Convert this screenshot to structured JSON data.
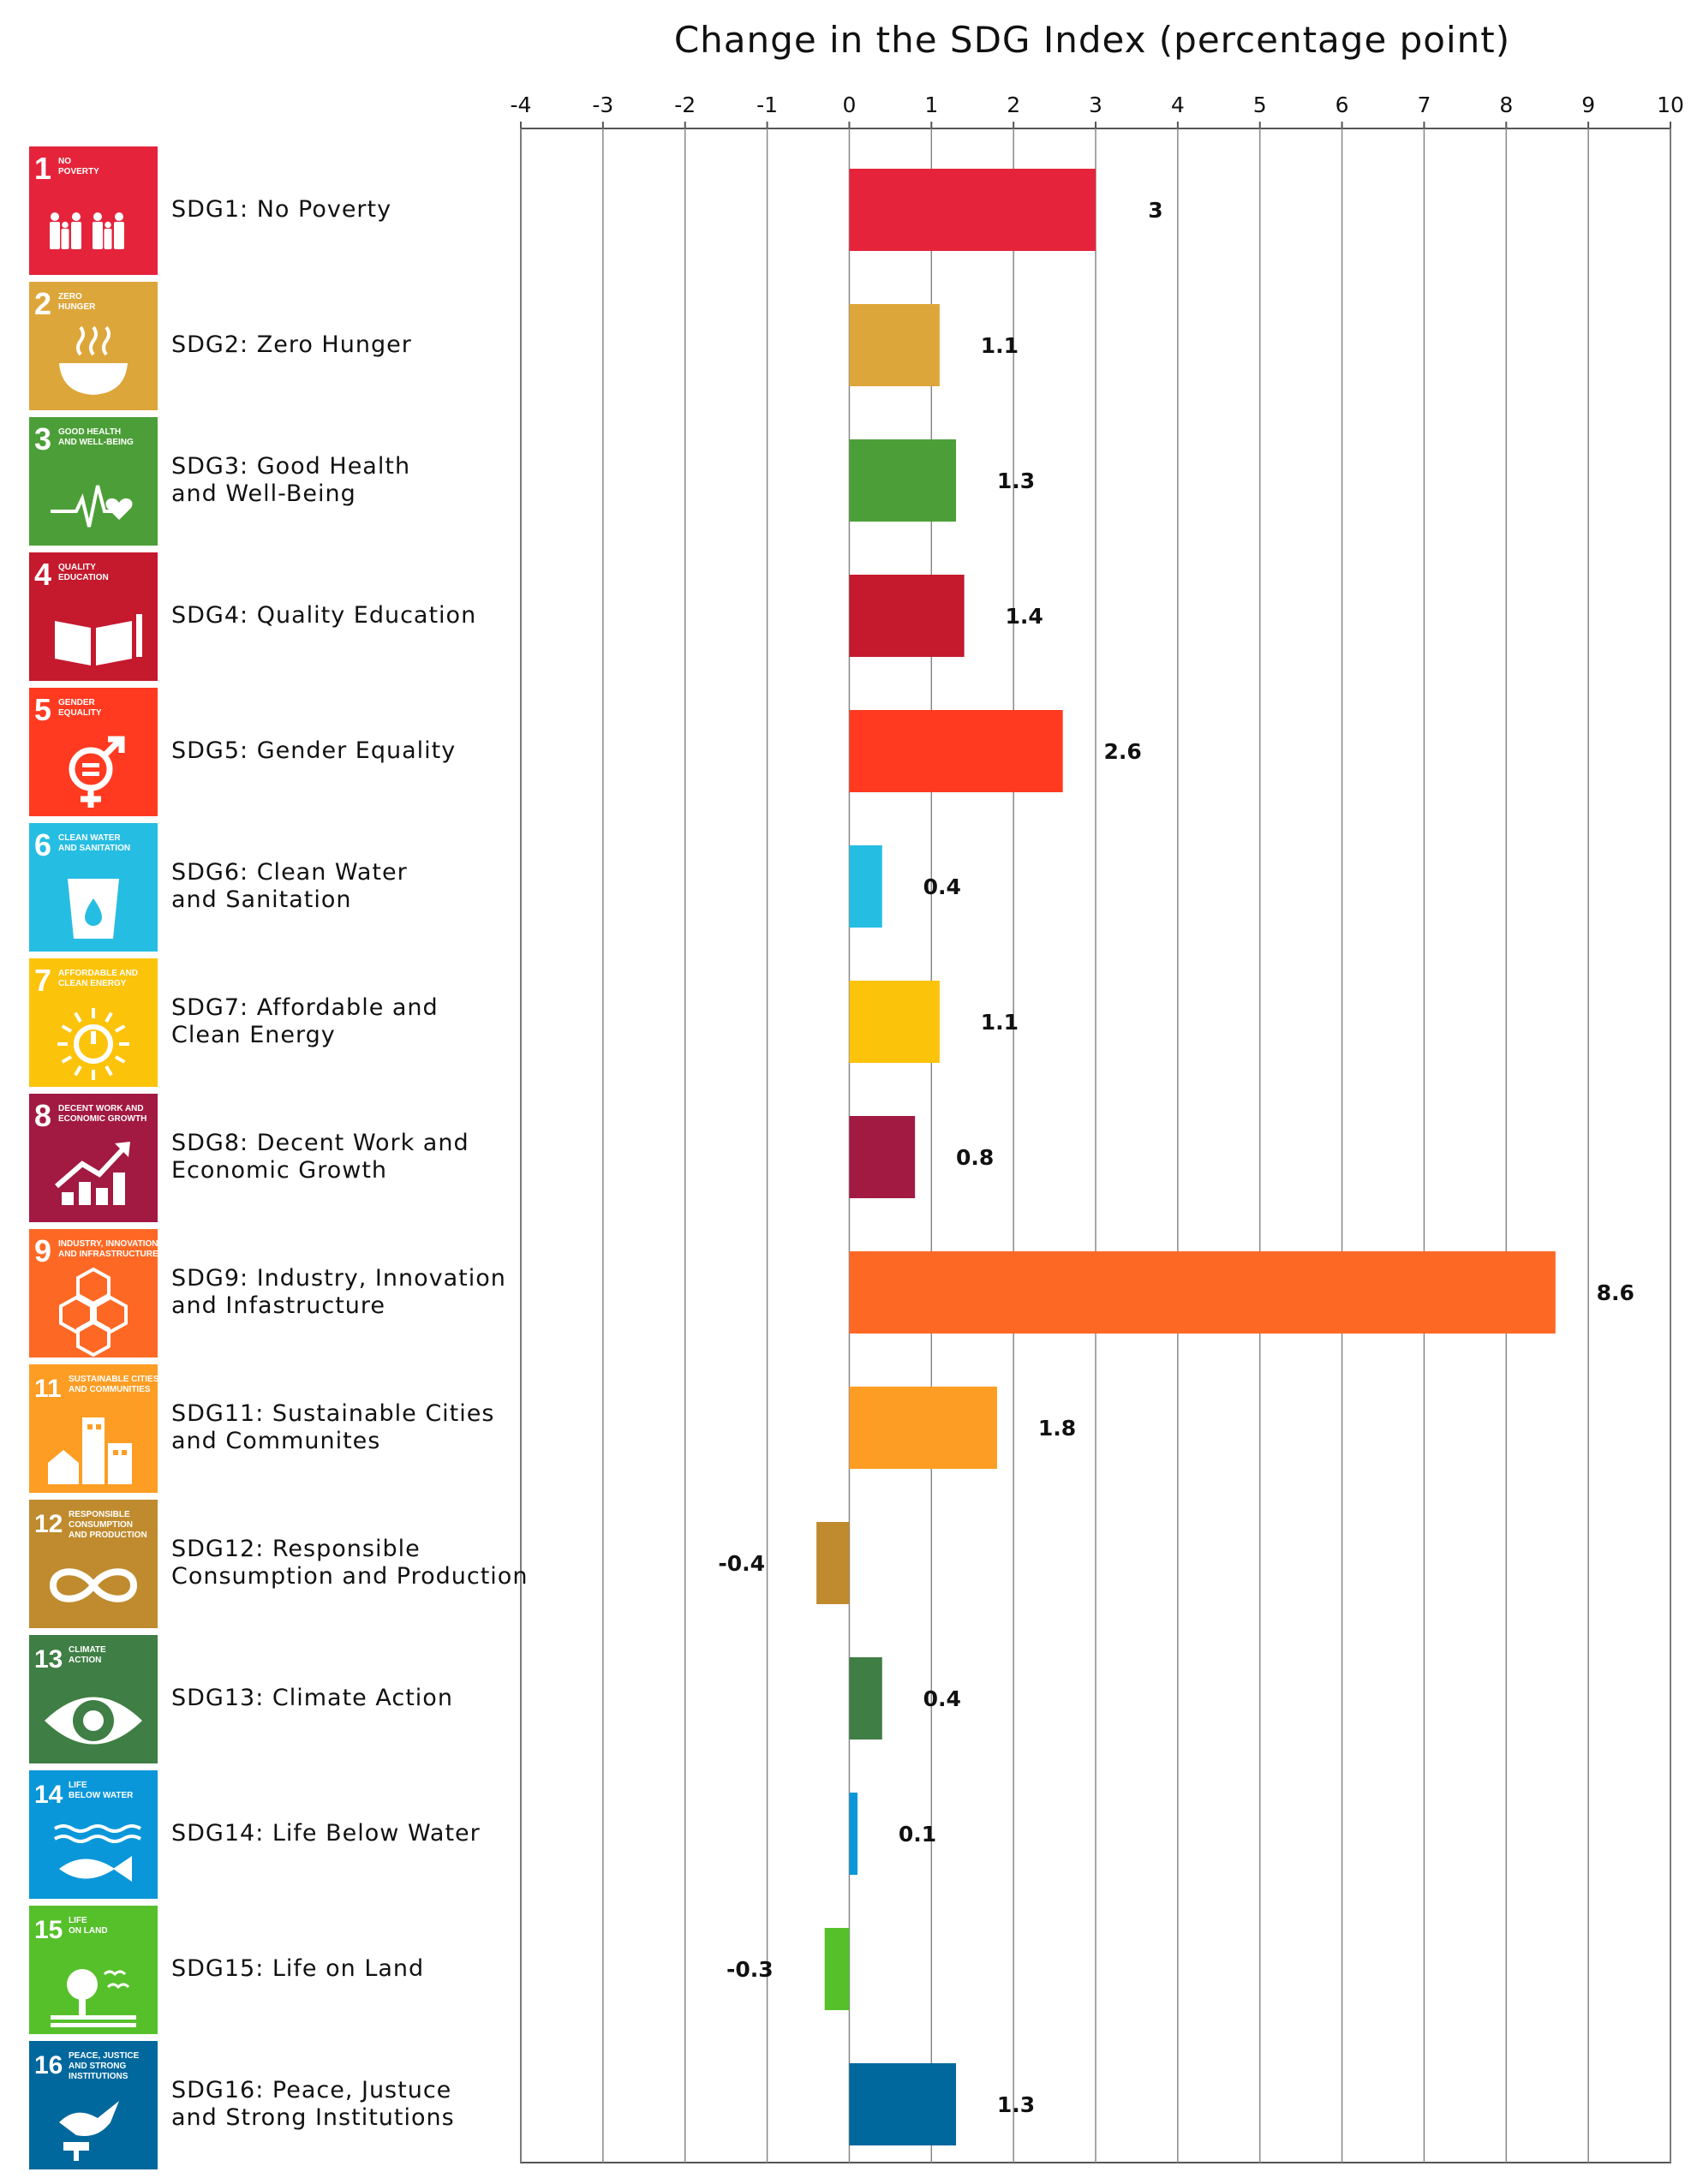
{
  "chart_data": {
    "type": "bar",
    "orientation": "horizontal",
    "title": "Change in the SDG Index (percentage point)",
    "xlim": [
      -4,
      10
    ],
    "x_ticks": [
      "-4",
      "-3",
      "-2",
      "-1",
      "0",
      "1",
      "2",
      "3",
      "4",
      "5",
      "6",
      "7",
      "8",
      "9",
      "10"
    ],
    "grid": "vertical",
    "legend": "none",
    "categories": [
      "SDG1: No Poverty",
      "SDG2: Zero Hunger",
      "SDG3: Good Health\nand Well-Being",
      "SDG4: Quality Education",
      "SDG5: Gender Equality",
      "SDG6: Clean Water\nand Sanitation",
      "SDG7: Affordable and\nClean Energy",
      "SDG8: Decent Work and\nEconomic Growth",
      "SDG9: Industry, Innovation\nand Infastructure",
      "SDG11: Sustainable Cities\nand Communites",
      "SDG12: Responsible\nConsumption and Production",
      "SDG13: Climate Action",
      "SDG14: Life Below Water",
      "SDG15: Life on Land",
      "SDG16: Peace, Justuce\nand Strong Institutions"
    ],
    "values": [
      3,
      1.1,
      1.3,
      1.4,
      2.6,
      0.4,
      1.1,
      0.8,
      8.6,
      1.8,
      -0.4,
      0.4,
      0.1,
      -0.3,
      1.3
    ],
    "value_labels": [
      "3",
      "1.1",
      "1.3",
      "1.4",
      "2.6",
      "0.4",
      "1.1",
      "0.8",
      "8.6",
      "1.8",
      "-0.4",
      "0.4",
      "0.1",
      "-0.3",
      "1.3"
    ],
    "colors": [
      "#E5243B",
      "#DDA63A",
      "#4C9F38",
      "#C5192D",
      "#FF3A21",
      "#26BDE2",
      "#FCC30B",
      "#A21942",
      "#FD6925",
      "#FD9D24",
      "#BF8B2E",
      "#3F7E44",
      "#0A97D9",
      "#56C02B",
      "#00689D"
    ]
  },
  "tiles": [
    {
      "number": "1",
      "caption": [
        "NO",
        "POVERTY"
      ],
      "icon": "family-icon"
    },
    {
      "number": "2",
      "caption": [
        "ZERO",
        "HUNGER"
      ],
      "icon": "bowl-icon"
    },
    {
      "number": "3",
      "caption": [
        "GOOD HEALTH",
        "AND WELL-BEING"
      ],
      "icon": "heartbeat-icon"
    },
    {
      "number": "4",
      "caption": [
        "QUALITY",
        "EDUCATION"
      ],
      "icon": "book-icon"
    },
    {
      "number": "5",
      "caption": [
        "GENDER",
        "EQUALITY"
      ],
      "icon": "gender-icon"
    },
    {
      "number": "6",
      "caption": [
        "CLEAN WATER",
        "AND SANITATION"
      ],
      "icon": "water-glass-icon"
    },
    {
      "number": "7",
      "caption": [
        "AFFORDABLE AND",
        "CLEAN ENERGY"
      ],
      "icon": "sun-power-icon"
    },
    {
      "number": "8",
      "caption": [
        "DECENT WORK AND",
        "ECONOMIC GROWTH"
      ],
      "icon": "growth-chart-icon"
    },
    {
      "number": "9",
      "caption": [
        "INDUSTRY, INNOVATION",
        "AND INFRASTRUCTURE"
      ],
      "icon": "cubes-icon"
    },
    {
      "number": "11",
      "caption": [
        "SUSTAINABLE CITIES",
        "AND COMMUNITIES"
      ],
      "icon": "city-icon"
    },
    {
      "number": "12",
      "caption": [
        "RESPONSIBLE",
        "CONSUMPTION",
        "AND PRODUCTION"
      ],
      "icon": "infinity-icon"
    },
    {
      "number": "13",
      "caption": [
        "CLIMATE",
        "ACTION"
      ],
      "icon": "eye-globe-icon"
    },
    {
      "number": "14",
      "caption": [
        "LIFE",
        "BELOW WATER"
      ],
      "icon": "fish-icon"
    },
    {
      "number": "15",
      "caption": [
        "LIFE",
        "ON LAND"
      ],
      "icon": "tree-icon"
    },
    {
      "number": "16",
      "caption": [
        "PEACE, JUSTICE",
        "AND STRONG",
        "INSTITUTIONS"
      ],
      "icon": "dove-gavel-icon"
    }
  ]
}
